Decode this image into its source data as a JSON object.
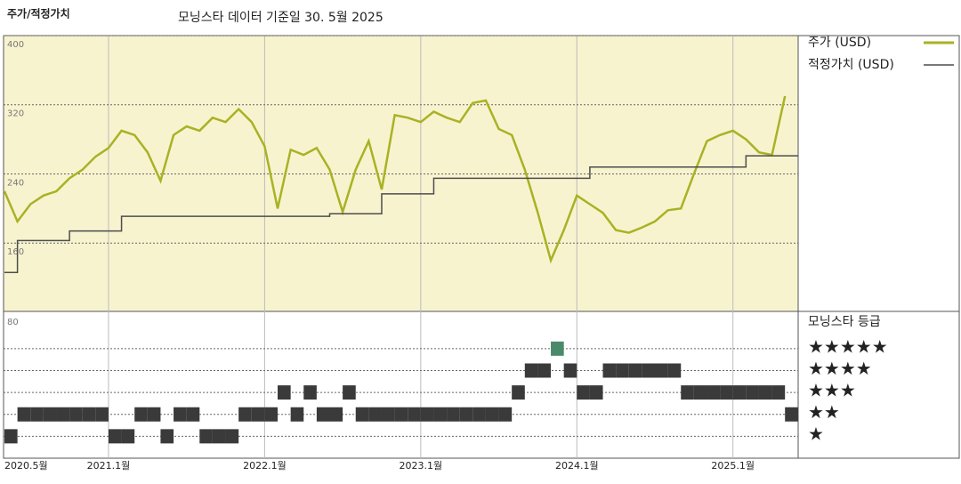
{
  "header": {
    "title": "주가/적정가치",
    "subtitle": "모닝스타 데이터 기준일 30. 5월 2025"
  },
  "chart_data": [
    {
      "type": "line",
      "x": [
        "2020-05",
        "2020-06",
        "2020-07",
        "2020-08",
        "2020-09",
        "2020-10",
        "2020-11",
        "2020-12",
        "2021-01",
        "2021-02",
        "2021-03",
        "2021-04",
        "2021-05",
        "2021-06",
        "2021-07",
        "2021-08",
        "2021-09",
        "2021-10",
        "2021-11",
        "2021-12",
        "2022-01",
        "2022-02",
        "2022-03",
        "2022-04",
        "2022-05",
        "2022-06",
        "2022-07",
        "2022-08",
        "2022-09",
        "2022-10",
        "2022-11",
        "2022-12",
        "2023-01",
        "2023-02",
        "2023-03",
        "2023-04",
        "2023-05",
        "2023-06",
        "2023-07",
        "2023-08",
        "2023-09",
        "2023-10",
        "2023-11",
        "2023-12",
        "2024-01",
        "2024-02",
        "2024-03",
        "2024-04",
        "2024-05",
        "2024-06",
        "2024-07",
        "2024-08",
        "2024-09",
        "2024-10",
        "2024-11",
        "2024-12",
        "2025-01",
        "2025-02",
        "2025-03",
        "2025-04",
        "2025-05"
      ],
      "xticks": [
        {
          "value": "2020-05",
          "label": "2020.5월"
        },
        {
          "value": "2021-01",
          "label": "2021.1월"
        },
        {
          "value": "2022-01",
          "label": "2022.1월"
        },
        {
          "value": "2023-01",
          "label": "2023.1월"
        },
        {
          "value": "2024-01",
          "label": "2024.1월"
        },
        {
          "value": "2025-01",
          "label": "2025.1월"
        }
      ],
      "series": [
        {
          "name": "주가 (USD)",
          "color": "#a9b224",
          "values": [
            220,
            185,
            205,
            215,
            220,
            235,
            245,
            260,
            270,
            290,
            285,
            265,
            232,
            285,
            295,
            290,
            305,
            300,
            315,
            300,
            272,
            200,
            268,
            262,
            270,
            245,
            196,
            245,
            278,
            222,
            308,
            305,
            300,
            312,
            305,
            300,
            322,
            325,
            292,
            285,
            245,
            195,
            140,
            175,
            215,
            205,
            195,
            175,
            172,
            178,
            185,
            198,
            200,
            240,
            278,
            285,
            290,
            280,
            265,
            262,
            330
          ]
        },
        {
          "name": "적정가치 (USD)",
          "color": "#4d4d4d",
          "step": true,
          "values": [
            126,
            126,
            163,
            163,
            163,
            163,
            174,
            174,
            174,
            174,
            191,
            191,
            191,
            191,
            191,
            191,
            191,
            191,
            191,
            191,
            191,
            191,
            191,
            191,
            191,
            191,
            194,
            194,
            194,
            194,
            217,
            217,
            217,
            217,
            235,
            235,
            235,
            235,
            235,
            235,
            235,
            235,
            235,
            235,
            235,
            235,
            248,
            248,
            248,
            248,
            248,
            248,
            248,
            248,
            248,
            248,
            248,
            248,
            261,
            261,
            261
          ]
        }
      ],
      "ylim": [
        81,
        400
      ],
      "yticks": [
        160,
        240,
        320,
        400
      ],
      "grid": true
    },
    {
      "type": "rating",
      "title": "모닝스타 등급",
      "axis_label": "80",
      "color": "#3a3a3a",
      "top_color": "#4a8a6a",
      "levels": [
        {
          "value": 5,
          "label": "★★★★★"
        },
        {
          "value": 4,
          "label": "★★★★"
        },
        {
          "value": 3,
          "label": "★★★"
        },
        {
          "value": 2,
          "label": "★★"
        },
        {
          "value": 1,
          "label": "★"
        }
      ],
      "ylim": [
        0,
        6.7
      ],
      "values": [
        1,
        2,
        2,
        2,
        2,
        2,
        2,
        2,
        1,
        1,
        2,
        2,
        1,
        2,
        2,
        1,
        1,
        1,
        2,
        2,
        2,
        3,
        2,
        3,
        2,
        2,
        3,
        2,
        2,
        2,
        2,
        2,
        2,
        2,
        2,
        2,
        2,
        2,
        2,
        3,
        4,
        4,
        5,
        4,
        3,
        3,
        4,
        4,
        4,
        4,
        4,
        4,
        3,
        3,
        3,
        3,
        3,
        3,
        3,
        3,
        2
      ]
    }
  ]
}
